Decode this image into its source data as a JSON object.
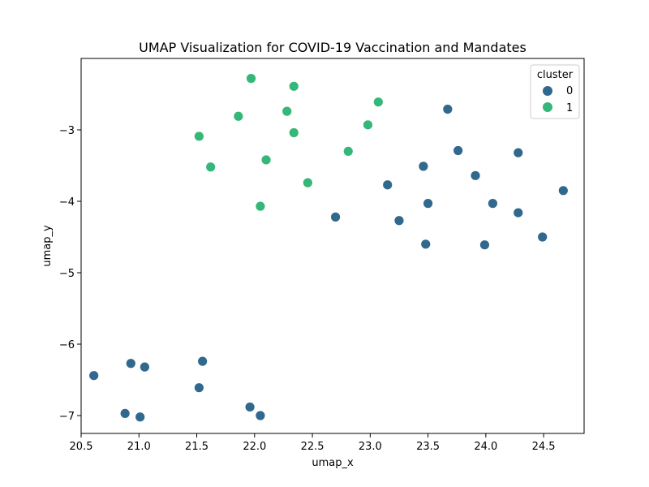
{
  "chart_data": {
    "type": "scatter",
    "title": "UMAP Visualization for COVID-19 Vaccination and Mandates",
    "xlabel": "umap_x",
    "ylabel": "umap_y",
    "xlim": [
      20.5,
      24.85
    ],
    "ylim": [
      -7.25,
      -2.0
    ],
    "xticks": [
      20.5,
      21.0,
      21.5,
      22.0,
      22.5,
      23.0,
      23.5,
      24.0,
      24.5
    ],
    "xtick_labels": [
      "20.5",
      "21.0",
      "21.5",
      "22.0",
      "22.5",
      "23.0",
      "23.5",
      "24.0",
      "24.5"
    ],
    "yticks": [
      -3,
      -4,
      -5,
      -6,
      -7
    ],
    "ytick_labels": [
      "−3",
      "−4",
      "−5",
      "−6",
      "−7"
    ],
    "grid": false,
    "legend": {
      "title": "cluster",
      "placement": "top-right",
      "entries": [
        "0",
        "1"
      ]
    },
    "series": [
      {
        "name": "0",
        "color": "#31688e",
        "points": [
          [
            23.67,
            -2.71
          ],
          [
            23.76,
            -3.29
          ],
          [
            24.28,
            -3.32
          ],
          [
            23.46,
            -3.51
          ],
          [
            23.91,
            -3.64
          ],
          [
            23.15,
            -3.77
          ],
          [
            24.67,
            -3.85
          ],
          [
            23.5,
            -4.03
          ],
          [
            24.06,
            -4.03
          ],
          [
            22.7,
            -4.22
          ],
          [
            24.28,
            -4.16
          ],
          [
            23.25,
            -4.27
          ],
          [
            24.49,
            -4.5
          ],
          [
            23.48,
            -4.6
          ],
          [
            23.99,
            -4.61
          ],
          [
            20.61,
            -6.44
          ],
          [
            20.93,
            -6.27
          ],
          [
            21.05,
            -6.32
          ],
          [
            21.55,
            -6.24
          ],
          [
            21.52,
            -6.61
          ],
          [
            20.88,
            -6.97
          ],
          [
            21.01,
            -7.02
          ],
          [
            21.96,
            -6.88
          ],
          [
            22.05,
            -7.0
          ]
        ]
      },
      {
        "name": "1",
        "color": "#35b779",
        "points": [
          [
            21.97,
            -2.28
          ],
          [
            22.34,
            -2.39
          ],
          [
            23.07,
            -2.61
          ],
          [
            22.28,
            -2.74
          ],
          [
            21.86,
            -2.81
          ],
          [
            22.98,
            -2.93
          ],
          [
            21.52,
            -3.09
          ],
          [
            22.34,
            -3.04
          ],
          [
            22.81,
            -3.3
          ],
          [
            22.1,
            -3.42
          ],
          [
            21.62,
            -3.52
          ],
          [
            22.46,
            -3.74
          ],
          [
            22.05,
            -4.07
          ]
        ]
      }
    ]
  }
}
